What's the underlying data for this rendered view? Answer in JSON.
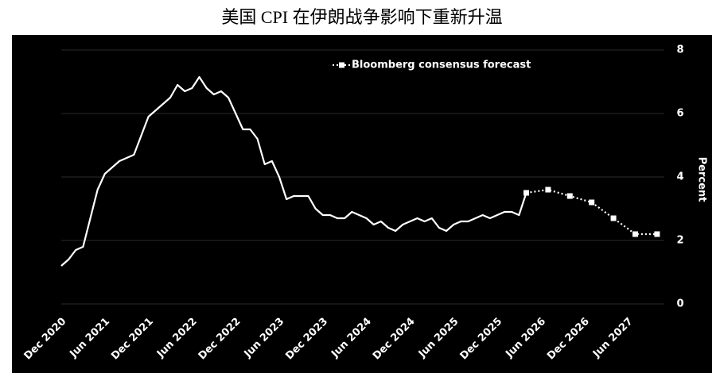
{
  "chart_data": {
    "type": "line",
    "title": "美国 CPI 在伊朗战争影响下重新升温",
    "y_label": "Percent",
    "ylim": [
      0,
      8
    ],
    "yticks": [
      0,
      2,
      4,
      6,
      8
    ],
    "xlim": [
      "2020-12",
      "2027-11"
    ],
    "xticks": [
      {
        "value": "2020-12",
        "label": "Dec 2020"
      },
      {
        "value": "2021-06",
        "label": "Jun 2021"
      },
      {
        "value": "2021-12",
        "label": "Dec 2021"
      },
      {
        "value": "2022-06",
        "label": "Jun 2022"
      },
      {
        "value": "2022-12",
        "label": "Dec 2022"
      },
      {
        "value": "2023-06",
        "label": "Jun 2023"
      },
      {
        "value": "2023-12",
        "label": "Dec 2023"
      },
      {
        "value": "2024-06",
        "label": "Jun 2024"
      },
      {
        "value": "2024-12",
        "label": "Dec 2024"
      },
      {
        "value": "2025-06",
        "label": "Jun 2025"
      },
      {
        "value": "2025-12",
        "label": "Dec 2025"
      },
      {
        "value": "2026-06",
        "label": "Jun 2026"
      },
      {
        "value": "2026-12",
        "label": "Dec 2026"
      },
      {
        "value": "2027-06",
        "label": "Jun 2027"
      }
    ],
    "grid": true,
    "series": [
      {
        "color": "#ffffff",
        "style": "solid",
        "x": [
          "2020-12",
          "2021-01",
          "2021-02",
          "2021-03",
          "2021-04",
          "2021-05",
          "2021-06",
          "2021-07",
          "2021-08",
          "2021-09",
          "2021-10",
          "2021-11",
          "2021-12",
          "2022-01",
          "2022-02",
          "2022-03",
          "2022-04",
          "2022-05",
          "2022-06",
          "2022-07",
          "2022-08",
          "2022-09",
          "2022-10",
          "2022-11",
          "2022-12",
          "2023-01",
          "2023-02",
          "2023-03",
          "2023-04",
          "2023-05",
          "2023-06",
          "2023-07",
          "2023-08",
          "2023-09",
          "2023-10",
          "2023-11",
          "2023-12",
          "2024-01",
          "2024-02",
          "2024-03",
          "2024-04",
          "2024-05",
          "2024-06",
          "2024-07",
          "2024-08",
          "2024-09",
          "2024-10",
          "2024-11",
          "2024-12",
          "2025-01",
          "2025-02",
          "2025-03",
          "2025-04",
          "2025-05",
          "2025-06",
          "2025-07",
          "2025-08",
          "2025-09",
          "2025-10",
          "2025-11",
          "2025-12",
          "2026-01",
          "2026-02",
          "2026-03",
          "2026-04"
        ],
        "values": [
          1.2,
          1.4,
          1.7,
          1.8,
          2.7,
          3.6,
          4.1,
          4.3,
          4.5,
          4.6,
          4.7,
          5.3,
          5.9,
          6.1,
          6.3,
          6.5,
          6.9,
          6.7,
          6.8,
          7.15,
          6.8,
          6.6,
          6.7,
          6.5,
          6.0,
          5.5,
          5.5,
          5.2,
          4.4,
          4.5,
          4.0,
          3.3,
          3.4,
          3.4,
          3.4,
          3.0,
          2.8,
          2.8,
          2.7,
          2.7,
          2.9,
          2.8,
          2.7,
          2.5,
          2.6,
          2.4,
          2.3,
          2.5,
          2.6,
          2.7,
          2.6,
          2.7,
          2.4,
          2.3,
          2.5,
          2.6,
          2.6,
          2.7,
          2.8,
          2.7,
          2.8,
          2.9,
          2.9,
          2.8,
          3.5
        ]
      },
      {
        "name": "Bloomberg consensus forecast",
        "color": "#ffffff",
        "style": "dotted",
        "x": [
          "2026-04",
          "2026-07",
          "2026-10",
          "2027-01",
          "2027-04",
          "2027-07",
          "2027-10"
        ],
        "values": [
          3.5,
          3.6,
          3.4,
          3.2,
          2.7,
          2.2,
          2.2
        ]
      }
    ]
  }
}
